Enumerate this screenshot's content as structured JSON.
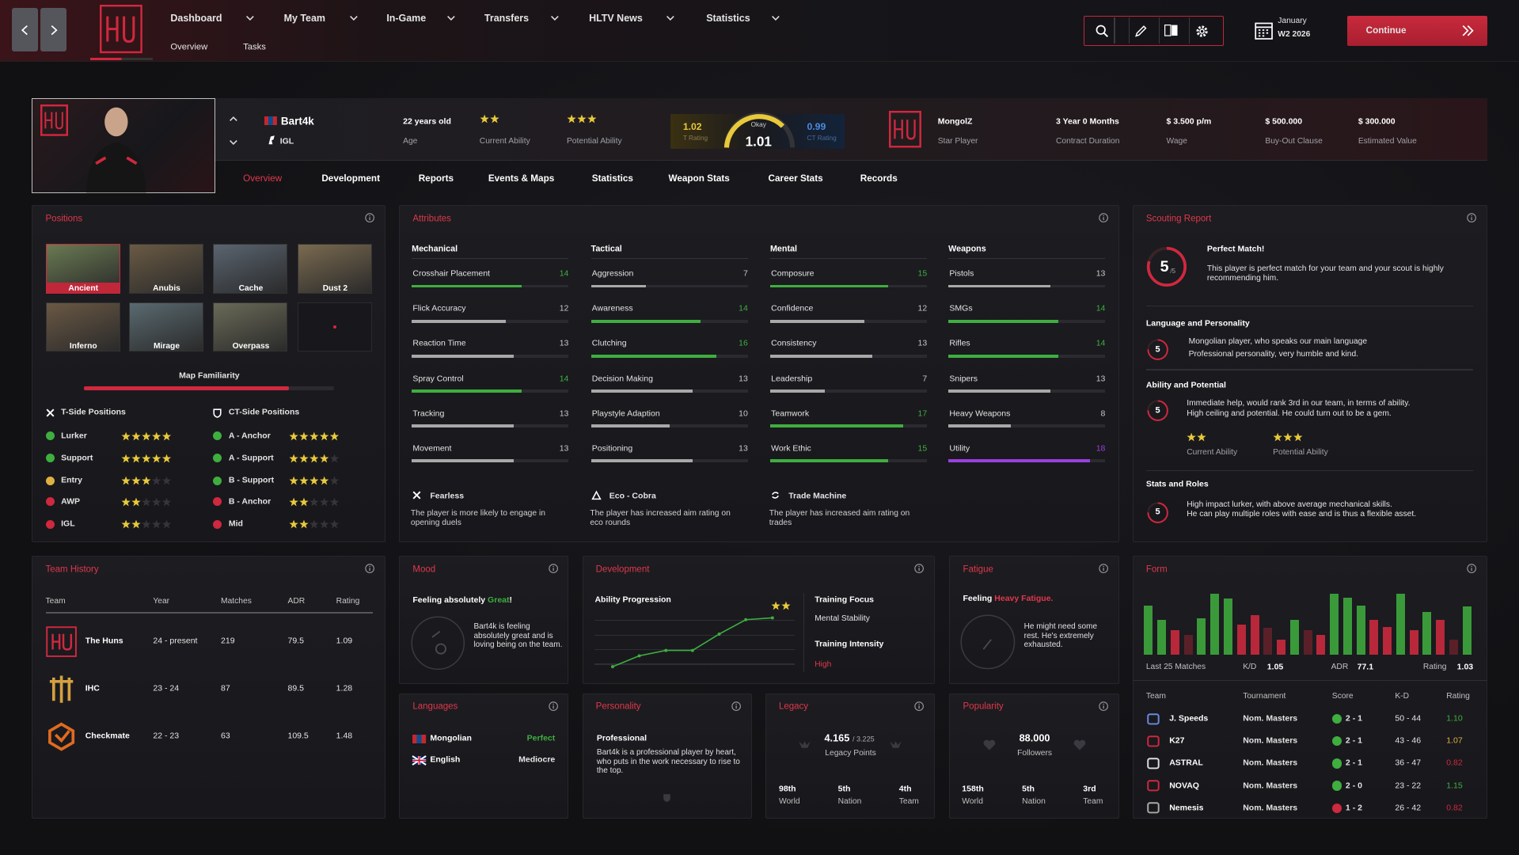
{
  "nav": {
    "menus": [
      "Dashboard",
      "My Team",
      "In-Game",
      "Transfers",
      "HLTV News",
      "Statistics"
    ],
    "submenu": [
      "Overview",
      "Tasks"
    ],
    "date": [
      "January",
      "W2 2026"
    ],
    "continue": "Continue"
  },
  "player": {
    "name": "Bart4k",
    "role": "IGL",
    "age": "22 years old",
    "age_label": "Age",
    "current_ability": 2,
    "current_ability_label": "Current Ability",
    "potential_ability": 3,
    "potential_ability_label": "Potential Ability",
    "t_rating": 1.02,
    "t_rating_label": "T Rating",
    "rating_word": "Okay",
    "rating": 1.01,
    "ct_rating": 0.99,
    "ct_rating_label": "CT Rating",
    "team": "MongolZ",
    "status": "Star Player",
    "facts": [
      {
        "value": "3 Year 0 Months",
        "label": "Contract Duration"
      },
      {
        "value": "$ 3.500 p/m",
        "label": "Wage"
      },
      {
        "value": "$ 500.000",
        "label": "Buy-Out Clause"
      },
      {
        "value": "$ 300.000",
        "label": "Estimated Value"
      }
    ]
  },
  "tabs": [
    "Overview",
    "Development",
    "Reports",
    "Events & Maps",
    "Statistics",
    "Weapon Stats",
    "Career Stats",
    "Records"
  ],
  "positions": {
    "title": "Positions",
    "maps": [
      "Ancient",
      "Anubis",
      "Cache",
      "Dust 2",
      "Inferno",
      "Mirage",
      "Overpass"
    ],
    "familiarity_label": "Map Familiarity",
    "familiarity": 82,
    "familiarity_xlim": [
      0,
      100
    ],
    "star_max": 5,
    "t_side": {
      "title": "T-Side Positions",
      "roles": [
        {
          "name": "Lurker",
          "stars": 5,
          "color": "#3fae3f"
        },
        {
          "name": "Support",
          "stars": 5,
          "color": "#3fae3f"
        },
        {
          "name": "Entry",
          "stars": 3,
          "color": "#e0b040"
        },
        {
          "name": "AWP",
          "stars": 2,
          "color": "#d0283e"
        },
        {
          "name": "IGL",
          "stars": 2,
          "color": "#d0283e"
        }
      ]
    },
    "ct_side": {
      "title": "CT-Side Positions",
      "roles": [
        {
          "name": "A - Anchor",
          "stars": 5,
          "color": "#3fae3f"
        },
        {
          "name": "A - Support",
          "stars": 4,
          "color": "#3fae3f"
        },
        {
          "name": "B - Support",
          "stars": 4,
          "color": "#3fae3f"
        },
        {
          "name": "B - Anchor",
          "stars": 2,
          "color": "#d0283e"
        },
        {
          "name": "Mid",
          "stars": 2,
          "color": "#d0283e"
        }
      ]
    }
  },
  "attributes": {
    "title": "Attributes",
    "xlim": [
      0,
      20
    ],
    "color_scale": [
      {
        "min": 0,
        "color": "#a8a8a8"
      },
      {
        "min": 14,
        "color": "#3fae3f"
      },
      {
        "min": 18,
        "color": "#9b3fe0"
      }
    ],
    "groups": [
      {
        "name": "Mechanical",
        "items": [
          {
            "name": "Crosshair Placement",
            "value": 14
          },
          {
            "name": "Flick Accuracy",
            "value": 12
          },
          {
            "name": "Reaction Time",
            "value": 13
          },
          {
            "name": "Spray Control",
            "value": 14
          },
          {
            "name": "Tracking",
            "value": 13
          },
          {
            "name": "Movement",
            "value": 13
          }
        ]
      },
      {
        "name": "Tactical",
        "items": [
          {
            "name": "Aggression",
            "value": 7
          },
          {
            "name": "Awareness",
            "value": 14
          },
          {
            "name": "Clutching",
            "value": 16
          },
          {
            "name": "Decision Making",
            "value": 13
          },
          {
            "name": "Playstyle Adaption",
            "value": 10
          },
          {
            "name": "Positioning",
            "value": 13
          }
        ]
      },
      {
        "name": "Mental",
        "items": [
          {
            "name": "Composure",
            "value": 15
          },
          {
            "name": "Confidence",
            "value": 12
          },
          {
            "name": "Consistency",
            "value": 13
          },
          {
            "name": "Leadership",
            "value": 7
          },
          {
            "name": "Teamwork",
            "value": 17
          },
          {
            "name": "Work Ethic",
            "value": 15
          }
        ]
      },
      {
        "name": "Weapons",
        "items": [
          {
            "name": "Pistols",
            "value": 13
          },
          {
            "name": "SMGs",
            "value": 14
          },
          {
            "name": "Rifles",
            "value": 14
          },
          {
            "name": "Snipers",
            "value": 13
          },
          {
            "name": "Heavy Weapons",
            "value": 8
          },
          {
            "name": "Utility",
            "value": 18
          }
        ]
      }
    ],
    "traits": [
      {
        "name": "Fearless",
        "text": "The player is more likely to engage in opening duels"
      },
      {
        "name": "Eco - Cobra",
        "text": "The player has increased aim rating on eco rounds"
      },
      {
        "name": "Trade Machine",
        "text": "The player has increased aim rating on trades"
      }
    ]
  },
  "scouting": {
    "title": "Scouting Report",
    "score": 5,
    "score_max": "/5",
    "headline": "Perfect Match!",
    "summary": [
      "This player is perfect match for your team and your scout is highly",
      "recommending him."
    ],
    "sections": [
      {
        "title": "Language and Personality",
        "score": 5,
        "lines": [
          "Mongolian player, who speaks our main language",
          "Professional personality, very humble and kind."
        ]
      },
      {
        "title": "Ability and Potential",
        "score": 5,
        "lines": [
          "Immediate help, would rank 3rd in our team, in terms of ability.",
          "High ceiling and potential. He could turn out to be a gem."
        ],
        "current_ability": 2,
        "current_ability_label": "Current Ability",
        "potential_ability": 3,
        "potential_ability_label": "Potential Ability"
      },
      {
        "title": "Stats and Roles",
        "score": 5,
        "lines": [
          "High impact lurker, with above average mechanical skills.",
          "He can play multiple roles with ease and is thus a flexible asset."
        ]
      }
    ]
  },
  "history": {
    "title": "Team History",
    "columns": [
      "Team",
      "Year",
      "Matches",
      "ADR",
      "Rating"
    ],
    "rows": [
      {
        "team": "The Huns",
        "year": "24 - present",
        "matches": 219,
        "adr": 79.5,
        "rating": 1.09
      },
      {
        "team": "IHC",
        "year": "23 - 24",
        "matches": 87,
        "adr": 89.5,
        "rating": 1.28
      },
      {
        "team": "Checkmate",
        "year": "22 - 23",
        "matches": 63,
        "adr": 109.5,
        "rating": 1.48
      }
    ]
  },
  "mood": {
    "title": "Mood",
    "prefix": "Feeling absolutely",
    "state": "Great",
    "suffix": "!",
    "text": "Bart4k is feeling absolutely great and is loving being on the team."
  },
  "development": {
    "title": "Development",
    "chart_title": "Ability Progression",
    "stars": 2,
    "progression": [
      2,
      14,
      20,
      20,
      38,
      54,
      56
    ],
    "ylim": [
      0,
      60
    ],
    "focus_label": "Training Focus",
    "focus": "Mental Stability",
    "intensity_label": "Training Intensity",
    "intensity": "High"
  },
  "fatigue": {
    "title": "Fatigue",
    "prefix": "Feeling",
    "state": "Heavy Fatigue.",
    "text": "He might need some rest. He's extremely exhausted."
  },
  "form": {
    "title": "Form",
    "ylim": [
      0,
      65
    ],
    "values": [
      51,
      36,
      26,
      21,
      38,
      63,
      58,
      31,
      41,
      28,
      16,
      36,
      26,
      21,
      63,
      59,
      51,
      36,
      29,
      63,
      26,
      44,
      36,
      16,
      50
    ],
    "colors": [
      "#3a9a3a",
      "#3a9a3a",
      "#b8283a",
      "#5a2028",
      "#3a9a3a",
      "#3a9a3a",
      "#3a9a3a",
      "#b8283a",
      "#b8283a",
      "#5a2028",
      "#b8283a",
      "#3a9a3a",
      "#5a2028",
      "#b8283a",
      "#3a9a3a",
      "#3a9a3a",
      "#3a9a3a",
      "#b8283a",
      "#b8283a",
      "#3a9a3a",
      "#b8283a",
      "#3a9a3a",
      "#b8283a",
      "#5a2028",
      "#3a9a3a"
    ],
    "period": "Last 25 Matches",
    "stats": [
      {
        "label": "K/D",
        "value": 1.05
      },
      {
        "label": "ADR",
        "value": 77.1
      },
      {
        "label": "Rating",
        "value": 1.03
      }
    ],
    "columns": [
      "Team",
      "Tournament",
      "Score",
      "K-D",
      "Rating"
    ],
    "matches": [
      {
        "team": "J. Speeds",
        "tournament": "Nom. Masters",
        "score": "2 - 1",
        "result_color": "#3fae3f",
        "kd": "50 - 44",
        "rating": "1.10",
        "rating_color": "#3fae3f"
      },
      {
        "team": "K27",
        "tournament": "Nom. Masters",
        "score": "2 - 1",
        "result_color": "#3fae3f",
        "kd": "43 - 46",
        "rating": "1.07",
        "rating_color": "#e0b040"
      },
      {
        "team": "ASTRAL",
        "tournament": "Nom. Masters",
        "score": "2 - 1",
        "result_color": "#3fae3f",
        "kd": "36 - 47",
        "rating": "0.82",
        "rating_color": "#d0283e"
      },
      {
        "team": "NOVAQ",
        "tournament": "Nom. Masters",
        "score": "2 - 0",
        "result_color": "#3fae3f",
        "kd": "23 - 22",
        "rating": "1.15",
        "rating_color": "#3fae3f"
      },
      {
        "team": "Nemesis",
        "tournament": "Nom. Masters",
        "score": "1 - 2",
        "result_color": "#d0283e",
        "kd": "26 - 42",
        "rating": "0.82",
        "rating_color": "#d0283e"
      }
    ]
  },
  "languages": {
    "title": "Languages",
    "items": [
      {
        "name": "Mongolian",
        "level": "Perfect",
        "color": "#3fae3f"
      },
      {
        "name": "English",
        "level": "Mediocre",
        "color": "#e6e6e6"
      }
    ]
  },
  "personality": {
    "title": "Personality",
    "name": "Professional",
    "text": "Bart4k is a professional player by heart, who puts in the work necessary to rise to the top."
  },
  "legacy": {
    "title": "Legacy",
    "points": "4.165",
    "max": "/ 3.225",
    "label": "Legacy Points",
    "ranks": [
      {
        "rank": "98th",
        "scope": "World"
      },
      {
        "rank": "5th",
        "scope": "Nation"
      },
      {
        "rank": "4th",
        "scope": "Team"
      }
    ]
  },
  "popularity": {
    "title": "Popularity",
    "followers": "88.000",
    "label": "Followers",
    "ranks": [
      {
        "rank": "158th",
        "scope": "World"
      },
      {
        "rank": "5th",
        "scope": "Nation"
      },
      {
        "rank": "3rd",
        "scope": "Team"
      }
    ]
  }
}
